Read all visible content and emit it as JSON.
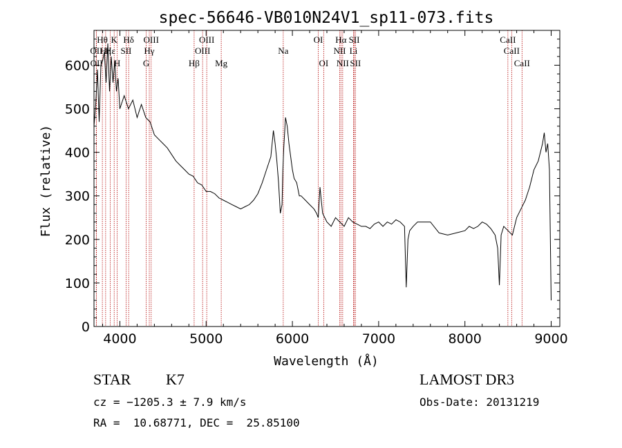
{
  "chart_data": {
    "type": "line",
    "title": "spec-56646-VB010N24V1_sp11-073.fits",
    "xlabel": "Wavelength (Å)",
    "ylabel": "Flux (relative)",
    "xlim": [
      3700,
      9100
    ],
    "ylim": [
      0,
      680
    ],
    "x_ticks": [
      4000,
      5000,
      6000,
      7000,
      8000,
      9000
    ],
    "y_ticks": [
      0,
      100,
      200,
      300,
      400,
      500,
      600
    ],
    "series": [
      {
        "name": "flux",
        "x": [
          3700,
          3720,
          3740,
          3760,
          3780,
          3800,
          3820,
          3840,
          3860,
          3880,
          3900,
          3920,
          3940,
          3960,
          3980,
          4000,
          4050,
          4100,
          4150,
          4200,
          4250,
          4300,
          4350,
          4400,
          4450,
          4500,
          4550,
          4600,
          4650,
          4700,
          4750,
          4800,
          4850,
          4900,
          4950,
          5000,
          5050,
          5100,
          5150,
          5200,
          5250,
          5300,
          5350,
          5400,
          5450,
          5500,
          5550,
          5600,
          5650,
          5700,
          5750,
          5780,
          5800,
          5820,
          5840,
          5860,
          5880,
          5890,
          5900,
          5920,
          5940,
          5960,
          5980,
          6000,
          6020,
          6050,
          6080,
          6100,
          6150,
          6200,
          6250,
          6280,
          6300,
          6320,
          6350,
          6400,
          6450,
          6500,
          6550,
          6600,
          6650,
          6700,
          6750,
          6800,
          6850,
          6900,
          6950,
          7000,
          7050,
          7100,
          7150,
          7200,
          7250,
          7300,
          7320,
          7340,
          7360,
          7400,
          7450,
          7500,
          7600,
          7700,
          7800,
          7900,
          8000,
          8050,
          8100,
          8150,
          8200,
          8250,
          8300,
          8350,
          8380,
          8400,
          8420,
          8450,
          8500,
          8550,
          8600,
          8650,
          8700,
          8750,
          8800,
          8850,
          8900,
          8920,
          8940,
          8960,
          8980,
          9000
        ],
        "y": [
          460,
          510,
          590,
          470,
          600,
          610,
          630,
          560,
          650,
          540,
          620,
          560,
          610,
          540,
          570,
          500,
          530,
          500,
          520,
          480,
          510,
          480,
          470,
          440,
          430,
          420,
          410,
          395,
          380,
          370,
          360,
          350,
          345,
          330,
          325,
          310,
          310,
          305,
          295,
          290,
          285,
          280,
          275,
          270,
          275,
          280,
          290,
          305,
          330,
          360,
          390,
          450,
          420,
          380,
          330,
          260,
          280,
          360,
          410,
          480,
          460,
          420,
          390,
          360,
          340,
          330,
          300,
          300,
          290,
          280,
          270,
          260,
          250,
          320,
          260,
          240,
          230,
          250,
          240,
          230,
          250,
          240,
          235,
          230,
          230,
          225,
          235,
          240,
          230,
          240,
          235,
          245,
          240,
          230,
          90,
          200,
          220,
          230,
          240,
          240,
          240,
          215,
          210,
          215,
          220,
          230,
          225,
          230,
          240,
          235,
          225,
          210,
          180,
          95,
          210,
          230,
          220,
          210,
          250,
          270,
          290,
          320,
          360,
          380,
          420,
          445,
          400,
          420,
          360,
          60
        ],
        "color": "#000000"
      }
    ],
    "lines": [
      {
        "label": "Hθ",
        "x": 3797,
        "row": 1
      },
      {
        "label": "OII",
        "x": 3727,
        "row": 2
      },
      {
        "label": "OII",
        "x": 3729,
        "row": 3
      },
      {
        "label": "Hη",
        "x": 3835,
        "row": 2
      },
      {
        "label": "Hε",
        "x": 3889,
        "row": 2
      },
      {
        "label": "K",
        "x": 3934,
        "row": 1
      },
      {
        "label": "H",
        "x": 3969,
        "row": 3
      },
      {
        "label": "Hδ",
        "x": 4102,
        "row": 1
      },
      {
        "label": "SII",
        "x": 4072,
        "row": 2
      },
      {
        "label": "OIII",
        "x": 4363,
        "row": 1
      },
      {
        "label": "Hγ",
        "x": 4341,
        "row": 2
      },
      {
        "label": "G",
        "x": 4305,
        "row": 3
      },
      {
        "label": "Hβ",
        "x": 4861,
        "row": 3
      },
      {
        "label": "OIII",
        "x": 5007,
        "row": 1
      },
      {
        "label": "OIII",
        "x": 4959,
        "row": 2
      },
      {
        "label": "Mg",
        "x": 5175,
        "row": 3
      },
      {
        "label": "Na",
        "x": 5894,
        "row": 2
      },
      {
        "label": "OI",
        "x": 6300,
        "row": 1
      },
      {
        "label": "OI",
        "x": 6363,
        "row": 3
      },
      {
        "label": "Hα",
        "x": 6563,
        "row": 1
      },
      {
        "label": "NII",
        "x": 6548,
        "row": 2
      },
      {
        "label": "NII",
        "x": 6583,
        "row": 3
      },
      {
        "label": "SII",
        "x": 6717,
        "row": 1
      },
      {
        "label": "Li",
        "x": 6708,
        "row": 2
      },
      {
        "label": "SII",
        "x": 6731,
        "row": 3
      },
      {
        "label": "CaII",
        "x": 8498,
        "row": 1
      },
      {
        "label": "CaII",
        "x": 8542,
        "row": 2
      },
      {
        "label": "CaII",
        "x": 8662,
        "row": 3
      }
    ]
  },
  "info": {
    "class": "STAR",
    "subclass": "K7",
    "survey": "LAMOST DR3",
    "velocity": "cz = −1205.3 ± 7.9 km/s",
    "obs_date": "Obs-Date: 20131219",
    "coords": "RA =  10.68771, DEC =  25.85100"
  },
  "colors": {
    "line_marker": "#b30000",
    "spectrum": "#000000"
  }
}
